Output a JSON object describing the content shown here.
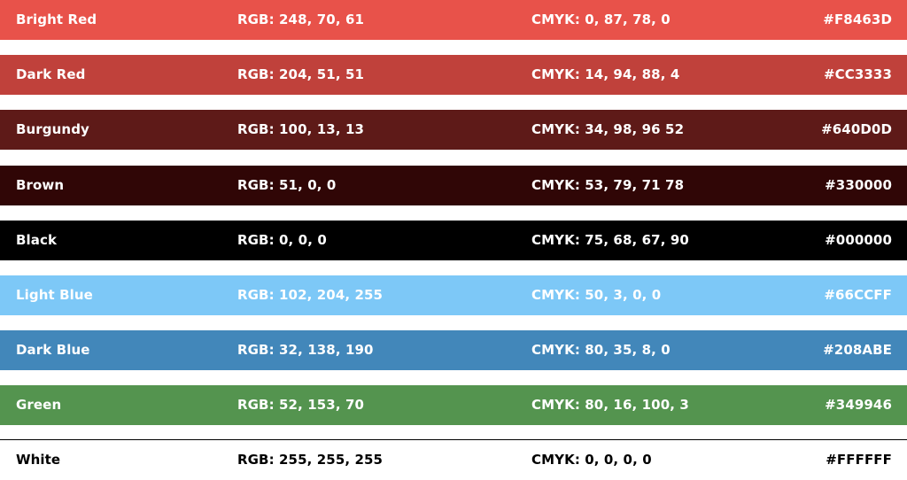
{
  "swatches": [
    {
      "name": "Bright Red",
      "rgb": "RGB: 248, 70, 61",
      "cmyk": "CMYK: 0, 87, 78, 0",
      "hex": "#F8463D",
      "color": "#E8524A"
    },
    {
      "name": "Dark Red",
      "rgb": "RGB: 204, 51, 51",
      "cmyk": "CMYK: 14, 94, 88, 4",
      "hex": "#CC3333",
      "color": "#C0413B"
    },
    {
      "name": "Burgundy",
      "rgb": "RGB: 100, 13, 13",
      "cmyk": "CMYK: 34, 98, 96 52",
      "hex": "#640D0D",
      "color": "#5E1A18"
    },
    {
      "name": "Brown",
      "rgb": "RGB: 51, 0, 0",
      "cmyk": "CMYK: 53, 79, 71 78",
      "hex": "#330000",
      "color": "#300606"
    },
    {
      "name": "Black",
      "rgb": "RGB: 0, 0, 0",
      "cmyk": "CMYK: 75, 68, 67, 90",
      "hex": "#000000",
      "color": "#000000"
    },
    {
      "name": "Light Blue",
      "rgb": "RGB: 102, 204, 255",
      "cmyk": "CMYK: 50, 3, 0, 0",
      "hex": "#66CCFF",
      "color": "#7DC8F7"
    },
    {
      "name": "Dark Blue",
      "rgb": "RGB: 32, 138, 190",
      "cmyk": "CMYK: 80, 35, 8, 0",
      "hex": "#208ABE",
      "color": "#4287BA"
    },
    {
      "name": "Green",
      "rgb": "RGB: 52, 153, 70",
      "cmyk": "CMYK: 80, 16, 100, 3",
      "hex": "#349946",
      "color": "#54944F"
    },
    {
      "name": "White",
      "rgb": "RGB: 255, 255, 255",
      "cmyk": "CMYK: 0, 0, 0, 0",
      "hex": "#FFFFFF",
      "color": "#FFFFFF"
    }
  ]
}
